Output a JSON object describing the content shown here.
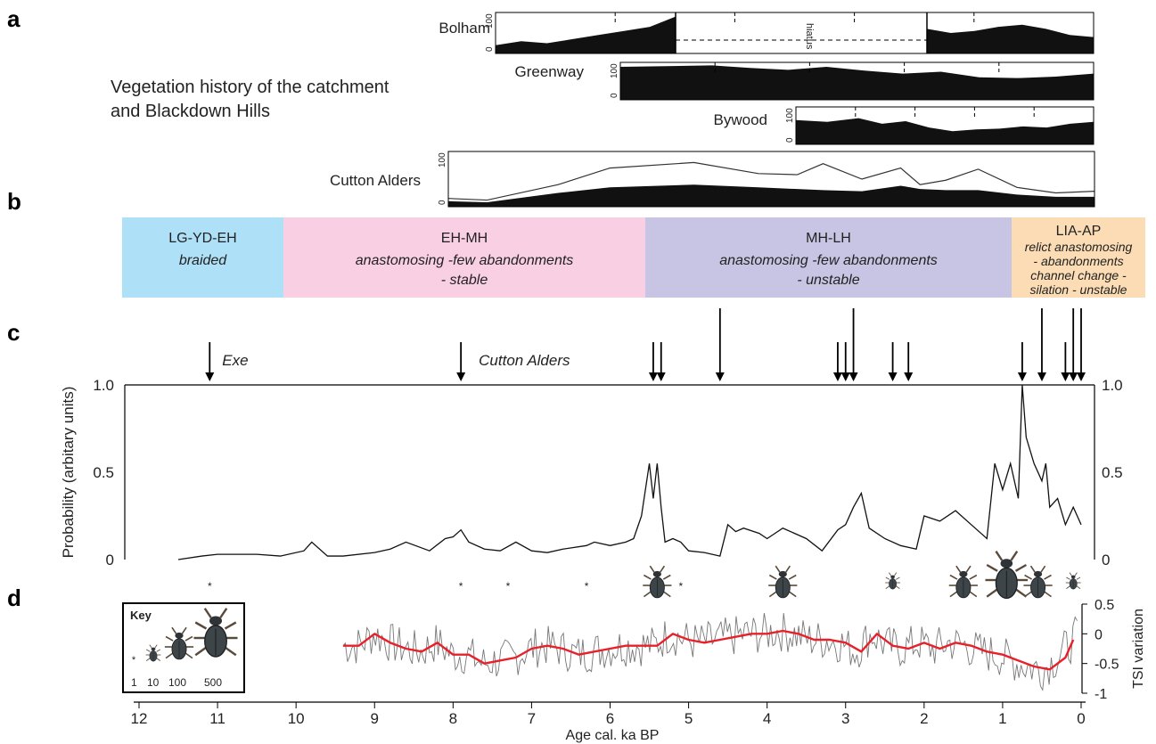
{
  "panel_letters": [
    "a",
    "b",
    "c",
    "d"
  ],
  "panel_a": {
    "heading_line1": "Vegetation history of the catchment",
    "heading_line2": "and Blackdown Hills",
    "hiatus_label": "hiatus"
  },
  "panel_b": {
    "zones": [
      {
        "title": "LG-YD-EH",
        "desc": [
          "braided"
        ],
        "color": "#aee0f7",
        "from_ka": 12.2,
        "to_ka": 10.2
      },
      {
        "title": "EH-MH",
        "desc": [
          "anastomosing -few abandonments",
          "- stable"
        ],
        "color": "#f8cfe3",
        "from_ka": 10.2,
        "to_ka": 5.6
      },
      {
        "title": "MH-LH",
        "desc": [
          "anastomosing -few abandonments",
          "- unstable"
        ],
        "color": "#c7c5e3",
        "from_ka": 5.6,
        "to_ka": 0.9
      },
      {
        "title": "LIA-AP",
        "desc": [
          "relict anastomosing",
          "- abandonments",
          "channel change -",
          "silation - unstable"
        ],
        "color": "#fbdcb5",
        "from_ka": 0.9,
        "to_ka": -0.2
      }
    ]
  },
  "panel_c": {
    "ylabel": "Probability (arbitary units)",
    "arrow_labels": {
      "exe": "Exe",
      "cutton": "Cutton Alders"
    },
    "tick_labels": [
      "0",
      "0.5",
      "1.0"
    ],
    "tick_labels_right": [
      "0",
      "0.5",
      "1.0"
    ]
  },
  "panel_d": {
    "ylabel_right": "TSI variation",
    "tick_labels": [
      "0.5",
      "0",
      "-0.5",
      "-1"
    ],
    "key_title": "Key",
    "key_values": [
      "1",
      "10",
      "100",
      "500"
    ]
  },
  "xaxis": {
    "label": "Age cal. ka BP",
    "ticks": [
      "12",
      "11",
      "10",
      "9",
      "8",
      "7",
      "6",
      "5",
      "4",
      "3",
      "2",
      "1",
      "0"
    ]
  },
  "colors": {
    "fill": "#111111",
    "line": "#111111",
    "red": "#e8202a",
    "grey": "#777777"
  },
  "chart_data": [
    {
      "type": "area",
      "title": "Bolham",
      "ylim": [
        0,
        100
      ],
      "x": [
        5.2,
        4.9,
        4.6,
        4.2,
        3.8,
        3.4,
        3.0,
        2.6,
        2.2,
        1.9,
        1.5,
        1.1,
        0.8,
        0.5,
        0.2,
        0.0
      ],
      "values": [
        20,
        30,
        25,
        35,
        45,
        55,
        65,
        90,
        60,
        50,
        55,
        65,
        70,
        60,
        45,
        40
      ],
      "note": "hiatus"
    },
    {
      "type": "area",
      "title": "Greenway",
      "ylim": [
        0,
        100
      ],
      "x": [
        6.2,
        5.6,
        5.0,
        4.5,
        4.0,
        3.5,
        3.0,
        2.5,
        2.0,
        1.5,
        1.0,
        0.5,
        0.0
      ],
      "values": [
        88,
        90,
        92,
        85,
        80,
        88,
        78,
        70,
        75,
        60,
        58,
        62,
        70
      ]
    },
    {
      "type": "area",
      "title": "Bywood",
      "ylim": [
        0,
        100
      ],
      "x": [
        3.8,
        3.4,
        3.0,
        2.7,
        2.4,
        2.1,
        1.8,
        1.5,
        1.2,
        0.9,
        0.6,
        0.3,
        0.0
      ],
      "values": [
        65,
        60,
        70,
        55,
        62,
        45,
        35,
        40,
        42,
        48,
        45,
        55,
        60
      ]
    },
    {
      "type": "area",
      "title": "Cutton Alders",
      "ylim": [
        0,
        100
      ],
      "x": [
        10.0,
        9.4,
        8.3,
        7.5,
        6.2,
        5.2,
        4.6,
        4.2,
        3.6,
        3.0,
        2.7,
        2.3,
        1.8,
        1.2,
        0.6,
        0.0
      ],
      "values": [
        10,
        8,
        25,
        35,
        40,
        35,
        32,
        30,
        28,
        38,
        32,
        30,
        30,
        22,
        18,
        18
      ],
      "series": [
        {
          "name": "Cutton Alders",
          "values": [
            10,
            8,
            25,
            35,
            40,
            35,
            32,
            30,
            28,
            38,
            32,
            30,
            30,
            22,
            18,
            18
          ]
        }
      ],
      "upper_line": [
        15,
        12,
        40,
        70,
        80,
        60,
        58,
        78,
        50,
        70,
        40,
        48,
        68,
        35,
        25,
        28
      ]
    },
    {
      "type": "line",
      "ylabel": "Probability (arbitary units)",
      "xlabel": "Age cal. ka BP",
      "xlim": [
        12,
        0
      ],
      "ylim": [
        0,
        1.0
      ],
      "x": [
        11.5,
        11.2,
        11.0,
        10.5,
        10.2,
        9.9,
        9.8,
        9.6,
        9.4,
        9.0,
        8.8,
        8.6,
        8.3,
        8.1,
        8.0,
        7.9,
        7.8,
        7.6,
        7.4,
        7.2,
        7.0,
        6.8,
        6.6,
        6.3,
        6.2,
        6.0,
        5.8,
        5.7,
        5.6,
        5.5,
        5.45,
        5.4,
        5.35,
        5.3,
        5.2,
        5.1,
        5.0,
        4.8,
        4.6,
        4.5,
        4.4,
        4.3,
        4.1,
        4.0,
        3.8,
        3.5,
        3.3,
        3.1,
        3.0,
        2.9,
        2.8,
        2.7,
        2.5,
        2.3,
        2.1,
        2.0,
        1.8,
        1.6,
        1.4,
        1.2,
        1.1,
        1.0,
        0.9,
        0.8,
        0.75,
        0.7,
        0.6,
        0.5,
        0.45,
        0.4,
        0.3,
        0.2,
        0.1,
        0.05,
        0.0
      ],
      "values": [
        0.0,
        0.02,
        0.03,
        0.03,
        0.02,
        0.05,
        0.1,
        0.02,
        0.02,
        0.04,
        0.06,
        0.1,
        0.05,
        0.12,
        0.13,
        0.17,
        0.1,
        0.06,
        0.05,
        0.1,
        0.05,
        0.04,
        0.06,
        0.08,
        0.1,
        0.08,
        0.1,
        0.12,
        0.25,
        0.55,
        0.35,
        0.55,
        0.3,
        0.1,
        0.12,
        0.1,
        0.05,
        0.04,
        0.02,
        0.2,
        0.16,
        0.18,
        0.15,
        0.12,
        0.18,
        0.12,
        0.05,
        0.17,
        0.2,
        0.3,
        0.38,
        0.18,
        0.12,
        0.08,
        0.06,
        0.25,
        0.22,
        0.28,
        0.2,
        0.12,
        0.55,
        0.4,
        0.55,
        0.35,
        1.0,
        0.7,
        0.55,
        0.45,
        0.55,
        0.3,
        0.35,
        0.2,
        0.3,
        0.25,
        0.2
      ],
      "arrows_ka": [
        11.1,
        7.9,
        5.45,
        5.35,
        4.6,
        3.1,
        3.0,
        2.9,
        2.4,
        2.2,
        0.75,
        0.5,
        0.2,
        0.1,
        0.0
      ],
      "arrow_labels": [
        "Exe",
        "Cutton Alders"
      ]
    },
    {
      "type": "line",
      "ylabel": "TSI variation",
      "ylim": [
        -1,
        0.5
      ],
      "xlim": [
        12,
        0
      ],
      "x": [
        9.4,
        9.2,
        9.0,
        8.8,
        8.6,
        8.4,
        8.2,
        8.0,
        7.8,
        7.6,
        7.4,
        7.2,
        7.0,
        6.8,
        6.6,
        6.4,
        6.2,
        6.0,
        5.8,
        5.6,
        5.4,
        5.2,
        5.0,
        4.8,
        4.6,
        4.4,
        4.2,
        4.0,
        3.8,
        3.6,
        3.4,
        3.2,
        3.0,
        2.8,
        2.6,
        2.4,
        2.2,
        2.0,
        1.8,
        1.6,
        1.4,
        1.2,
        1.0,
        0.8,
        0.6,
        0.4,
        0.2,
        0.1
      ],
      "series": [
        {
          "name": "smoothed",
          "values": [
            -0.2,
            -0.2,
            0.0,
            -0.15,
            -0.25,
            -0.3,
            -0.15,
            -0.35,
            -0.35,
            -0.5,
            -0.45,
            -0.4,
            -0.25,
            -0.2,
            -0.25,
            -0.35,
            -0.3,
            -0.25,
            -0.2,
            -0.2,
            -0.2,
            0.0,
            -0.1,
            -0.15,
            -0.1,
            -0.05,
            0.0,
            0.0,
            0.05,
            0.0,
            -0.1,
            -0.1,
            -0.15,
            -0.3,
            0.0,
            -0.2,
            -0.25,
            -0.15,
            -0.25,
            -0.15,
            -0.2,
            -0.3,
            -0.35,
            -0.45,
            -0.55,
            -0.6,
            -0.4,
            -0.1
          ]
        }
      ]
    }
  ],
  "beetles": [
    {
      "ka": 11.1,
      "size": "1"
    },
    {
      "ka": 7.9,
      "size": "1"
    },
    {
      "ka": 7.3,
      "size": "1"
    },
    {
      "ka": 6.3,
      "size": "1"
    },
    {
      "ka": 5.4,
      "size": "100"
    },
    {
      "ka": 5.1,
      "size": "1"
    },
    {
      "ka": 3.8,
      "size": "100"
    },
    {
      "ka": 2.4,
      "size": "10"
    },
    {
      "ka": 1.5,
      "size": "100"
    },
    {
      "ka": 0.95,
      "size": "500"
    },
    {
      "ka": 0.55,
      "size": "100"
    },
    {
      "ka": 0.1,
      "size": "10"
    }
  ]
}
